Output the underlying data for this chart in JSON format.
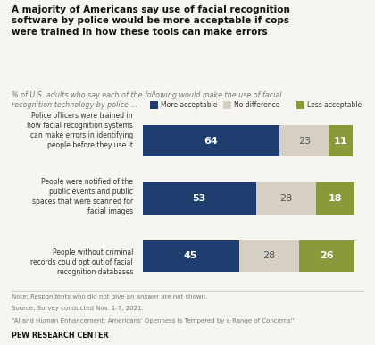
{
  "title": "A majority of Americans say use of facial recognition\nsoftware by police would be more acceptable if cops\nwere trained in how these tools can make errors",
  "subtitle": "% of U.S. adults who say each of the following would make the use of facial\nrecognition technology by police ...",
  "categories": [
    "Police officers were trained in\nhow facial recognition systems\ncan make errors in identifying\npeople before they use it",
    "People were notified of the\npublic events and public\nspaces that were scanned for\nfacial images",
    "People without criminal\nrecords could opt out of facial\nrecognition databases"
  ],
  "more_acceptable": [
    64,
    53,
    45
  ],
  "no_difference": [
    23,
    28,
    28
  ],
  "less_acceptable": [
    11,
    18,
    26
  ],
  "color_more": "#1f3d6e",
  "color_no_diff": "#d6d0c4",
  "color_less": "#8a9a3b",
  "legend_labels": [
    "More acceptable",
    "No difference",
    "Less acceptable"
  ],
  "note_line1": "Note: Respondents who did not give an answer are not shown.",
  "note_line2": "Source: Survey conducted Nov. 1-7, 2021.",
  "note_line3": "“AI and Human Enhancement: Americans’ Openness Is Tempered by a Range of Concerns”",
  "source_label": "PEW RESEARCH CENTER",
  "bg_color": "#f7f5f0",
  "bar_label_color_dark": "white",
  "bar_label_color_mid": "#555555",
  "xlim": [
    0,
    105
  ]
}
